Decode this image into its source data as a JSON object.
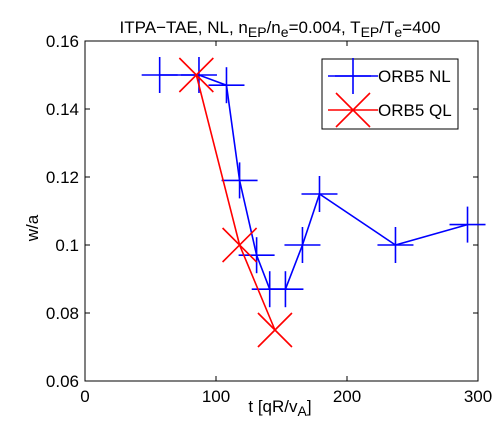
{
  "chart_data": {
    "type": "line",
    "title_parts": [
      {
        "text": "ITPA−TAE, NL, n",
        "sub": false
      },
      {
        "text": "EP",
        "sub": true
      },
      {
        "text": "/n",
        "sub": false
      },
      {
        "text": "e",
        "sub": true
      },
      {
        "text": "=0.004, T",
        "sub": false
      },
      {
        "text": "EP",
        "sub": true
      },
      {
        "text": "/T",
        "sub": false
      },
      {
        "text": "e",
        "sub": true
      },
      {
        "text": "=400",
        "sub": false
      }
    ],
    "xlabel_parts": [
      {
        "text": "t [qR/v",
        "sub": false
      },
      {
        "text": "A",
        "sub": true
      },
      {
        "text": "]",
        "sub": false
      }
    ],
    "ylabel": "w/a",
    "xlim": [
      0,
      300
    ],
    "ylim": [
      0.06,
      0.16
    ],
    "xticks": [
      0,
      100,
      200,
      300
    ],
    "xtick_labels": [
      "0",
      "100",
      "200",
      "300"
    ],
    "yticks": [
      0.06,
      0.08,
      0.1,
      0.12,
      0.14,
      0.16
    ],
    "ytick_labels": [
      "0.06",
      "0.08",
      "0.1",
      "0.12",
      "0.14",
      "0.16"
    ],
    "grid": false,
    "legend_position": "top-right",
    "series": [
      {
        "name": "ORB5 NL",
        "color": "#0000ff",
        "marker": "plus",
        "x": [
          57,
          87,
          108,
          118,
          131,
          141,
          153,
          166,
          179,
          237,
          292
        ],
        "y": [
          0.15,
          0.15,
          0.147,
          0.119,
          0.097,
          0.087,
          0.087,
          0.1,
          0.115,
          0.1,
          0.106
        ]
      },
      {
        "name": "ORB5 QL",
        "color": "#ff0000",
        "marker": "x",
        "x": [
          85,
          118,
          145
        ],
        "y": [
          0.15,
          0.1,
          0.075
        ]
      }
    ]
  }
}
